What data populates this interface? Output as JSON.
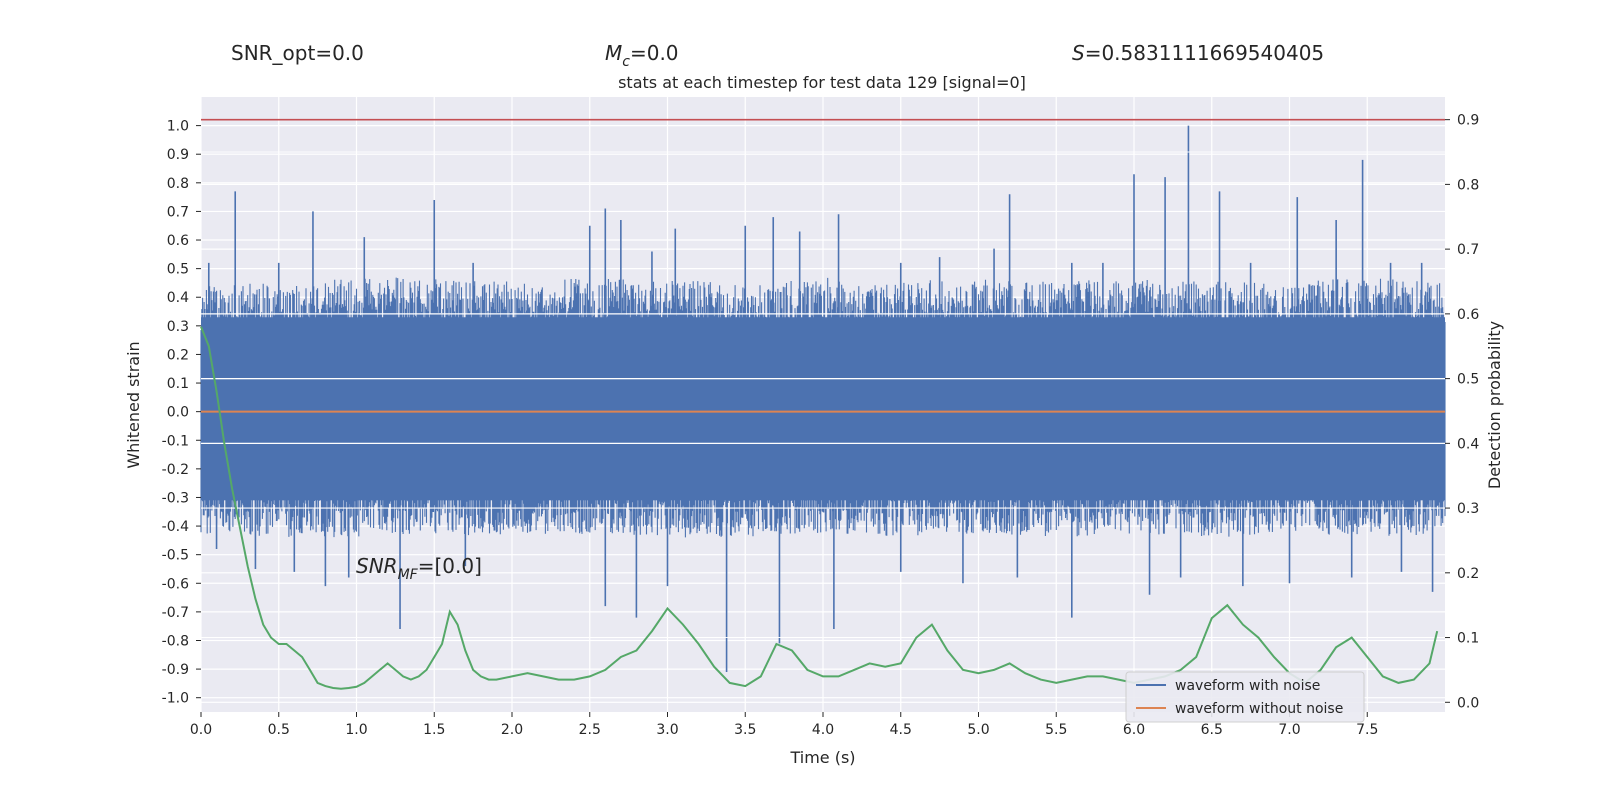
{
  "chart_data": {
    "type": "line",
    "title": "stats at each timestep for test data 129 [signal=0]",
    "stats": {
      "snr_opt_label": "SNR_opt=0.0",
      "mc_symbol": "M",
      "mc_sub": "c",
      "mc_value": "=0.0",
      "s_symbol": "S",
      "s_value": "=0.5831111669540405"
    },
    "annotation": {
      "prefix": "SNR",
      "sub": "MF",
      "value": "=[0.0]",
      "x": 1.0,
      "y": -0.5
    },
    "xlabel": "Time (s)",
    "ylabel_left": "Whitened strain",
    "ylabel_right": "Detection probability",
    "xlim": [
      0.0,
      8.0
    ],
    "ylim_left": [
      -1.05,
      1.1
    ],
    "ylim_right": [
      -0.015,
      0.935
    ],
    "xticks": [
      "0.0",
      "0.5",
      "1.0",
      "1.5",
      "2.0",
      "2.5",
      "3.0",
      "3.5",
      "4.0",
      "4.5",
      "5.0",
      "5.5",
      "6.0",
      "6.5",
      "7.0",
      "7.5"
    ],
    "yticks_left": [
      "-1.0",
      "-0.9",
      "-0.8",
      "-0.7",
      "-0.6",
      "-0.5",
      "-0.4",
      "-0.3",
      "-0.2",
      "-0.1",
      "0.0",
      "0.1",
      "0.2",
      "0.3",
      "0.4",
      "0.5",
      "0.6",
      "0.7",
      "0.8",
      "0.9",
      "1.0"
    ],
    "yticks_right": [
      "0.0",
      "0.1",
      "0.2",
      "0.3",
      "0.4",
      "0.5",
      "0.6",
      "0.7",
      "0.8",
      "0.9"
    ],
    "grid": true,
    "legend_placement": "lower-right",
    "series": [
      {
        "name": "waveform with noise",
        "axis": "left",
        "color": "#4c72b0",
        "style": "dense noise band",
        "band_upper": [
          [
            0.0,
            0.31
          ],
          [
            0.5,
            0.32
          ],
          [
            1.0,
            0.33
          ],
          [
            1.5,
            0.33
          ],
          [
            2.0,
            0.32
          ],
          [
            2.5,
            0.33
          ],
          [
            3.0,
            0.33
          ],
          [
            3.5,
            0.31
          ],
          [
            4.0,
            0.33
          ],
          [
            4.5,
            0.32
          ],
          [
            5.0,
            0.33
          ],
          [
            5.5,
            0.32
          ],
          [
            6.0,
            0.33
          ],
          [
            6.5,
            0.32
          ],
          [
            7.0,
            0.32
          ],
          [
            7.5,
            0.33
          ],
          [
            8.0,
            0.32
          ]
        ],
        "band_lower": [
          [
            0.0,
            -0.3
          ],
          [
            0.5,
            -0.31
          ],
          [
            1.0,
            -0.31
          ],
          [
            1.5,
            -0.3
          ],
          [
            2.0,
            -0.31
          ],
          [
            2.5,
            -0.3
          ],
          [
            3.0,
            -0.31
          ],
          [
            3.5,
            -0.31
          ],
          [
            4.0,
            -0.3
          ],
          [
            4.5,
            -0.31
          ],
          [
            5.0,
            -0.3
          ],
          [
            5.5,
            -0.31
          ],
          [
            6.0,
            -0.3
          ],
          [
            6.5,
            -0.31
          ],
          [
            7.0,
            -0.3
          ],
          [
            7.5,
            -0.31
          ],
          [
            8.0,
            -0.3
          ]
        ],
        "peaks": [
          [
            0.05,
            0.52
          ],
          [
            0.22,
            0.77
          ],
          [
            0.5,
            0.52
          ],
          [
            0.72,
            0.7
          ],
          [
            1.05,
            0.61
          ],
          [
            1.5,
            0.74
          ],
          [
            1.75,
            0.52
          ],
          [
            2.5,
            0.65
          ],
          [
            2.6,
            0.71
          ],
          [
            2.7,
            0.67
          ],
          [
            2.9,
            0.56
          ],
          [
            3.05,
            0.64
          ],
          [
            3.5,
            0.65
          ],
          [
            3.68,
            0.68
          ],
          [
            3.85,
            0.63
          ],
          [
            4.1,
            0.69
          ],
          [
            4.5,
            0.52
          ],
          [
            4.75,
            0.54
          ],
          [
            5.1,
            0.57
          ],
          [
            5.2,
            0.76
          ],
          [
            5.6,
            0.52
          ],
          [
            5.8,
            0.52
          ],
          [
            6.0,
            0.83
          ],
          [
            6.2,
            0.82
          ],
          [
            6.35,
            1.0
          ],
          [
            6.55,
            0.77
          ],
          [
            6.75,
            0.52
          ],
          [
            7.05,
            0.75
          ],
          [
            7.3,
            0.67
          ],
          [
            7.47,
            0.88
          ],
          [
            7.65,
            0.52
          ],
          [
            7.85,
            0.52
          ]
        ],
        "troughs": [
          [
            0.1,
            -0.48
          ],
          [
            0.35,
            -0.55
          ],
          [
            0.6,
            -0.56
          ],
          [
            0.8,
            -0.61
          ],
          [
            0.95,
            -0.58
          ],
          [
            1.28,
            -0.76
          ],
          [
            1.7,
            -0.54
          ],
          [
            2.6,
            -0.68
          ],
          [
            2.8,
            -0.72
          ],
          [
            3.0,
            -0.61
          ],
          [
            3.38,
            -0.91
          ],
          [
            3.72,
            -0.81
          ],
          [
            4.07,
            -0.76
          ],
          [
            4.5,
            -0.56
          ],
          [
            4.9,
            -0.6
          ],
          [
            5.25,
            -0.58
          ],
          [
            5.6,
            -0.72
          ],
          [
            6.1,
            -0.64
          ],
          [
            6.3,
            -0.58
          ],
          [
            6.7,
            -0.61
          ],
          [
            7.0,
            -0.6
          ],
          [
            7.4,
            -0.58
          ],
          [
            7.72,
            -0.56
          ],
          [
            7.92,
            -0.63
          ]
        ]
      },
      {
        "name": "waveform without noise",
        "axis": "left",
        "color": "#dd8452",
        "x": [
          0.0,
          8.0
        ],
        "y": [
          0.0,
          0.0
        ]
      },
      {
        "name": "",
        "axis": "right",
        "color": "#55a868",
        "x": [
          0.0,
          0.05,
          0.1,
          0.15,
          0.2,
          0.25,
          0.3,
          0.35,
          0.4,
          0.45,
          0.5,
          0.55,
          0.6,
          0.65,
          0.7,
          0.75,
          0.8,
          0.85,
          0.9,
          0.95,
          1.0,
          1.05,
          1.1,
          1.15,
          1.2,
          1.25,
          1.3,
          1.35,
          1.4,
          1.45,
          1.5,
          1.55,
          1.6,
          1.65,
          1.7,
          1.75,
          1.8,
          1.85,
          1.9,
          2.0,
          2.1,
          2.2,
          2.3,
          2.4,
          2.5,
          2.6,
          2.7,
          2.8,
          2.9,
          3.0,
          3.1,
          3.2,
          3.3,
          3.4,
          3.5,
          3.6,
          3.7,
          3.8,
          3.9,
          4.0,
          4.1,
          4.2,
          4.3,
          4.4,
          4.5,
          4.6,
          4.7,
          4.8,
          4.9,
          5.0,
          5.1,
          5.2,
          5.3,
          5.4,
          5.5,
          5.6,
          5.7,
          5.8,
          5.9,
          6.0,
          6.1,
          6.2,
          6.3,
          6.4,
          6.5,
          6.6,
          6.7,
          6.8,
          6.9,
          7.0,
          7.1,
          7.2,
          7.3,
          7.4,
          7.5,
          7.6,
          7.7,
          7.8,
          7.9,
          7.95
        ],
        "y": [
          0.58,
          0.55,
          0.48,
          0.4,
          0.33,
          0.27,
          0.21,
          0.16,
          0.12,
          0.1,
          0.09,
          0.09,
          0.08,
          0.07,
          0.05,
          0.03,
          0.025,
          0.022,
          0.021,
          0.022,
          0.024,
          0.03,
          0.04,
          0.05,
          0.06,
          0.05,
          0.04,
          0.035,
          0.04,
          0.05,
          0.07,
          0.09,
          0.14,
          0.12,
          0.08,
          0.05,
          0.04,
          0.035,
          0.035,
          0.04,
          0.045,
          0.04,
          0.035,
          0.035,
          0.04,
          0.05,
          0.07,
          0.08,
          0.11,
          0.145,
          0.12,
          0.09,
          0.055,
          0.03,
          0.025,
          0.04,
          0.09,
          0.08,
          0.05,
          0.04,
          0.04,
          0.05,
          0.06,
          0.055,
          0.06,
          0.1,
          0.12,
          0.08,
          0.05,
          0.045,
          0.05,
          0.06,
          0.045,
          0.035,
          0.03,
          0.035,
          0.04,
          0.04,
          0.035,
          0.03,
          0.035,
          0.04,
          0.05,
          0.07,
          0.13,
          0.15,
          0.12,
          0.1,
          0.07,
          0.045,
          0.03,
          0.05,
          0.085,
          0.1,
          0.07,
          0.04,
          0.03,
          0.035,
          0.06,
          0.11
        ]
      }
    ],
    "threshold": {
      "axis": "right",
      "y": 0.9,
      "color": "#c44e52"
    }
  }
}
